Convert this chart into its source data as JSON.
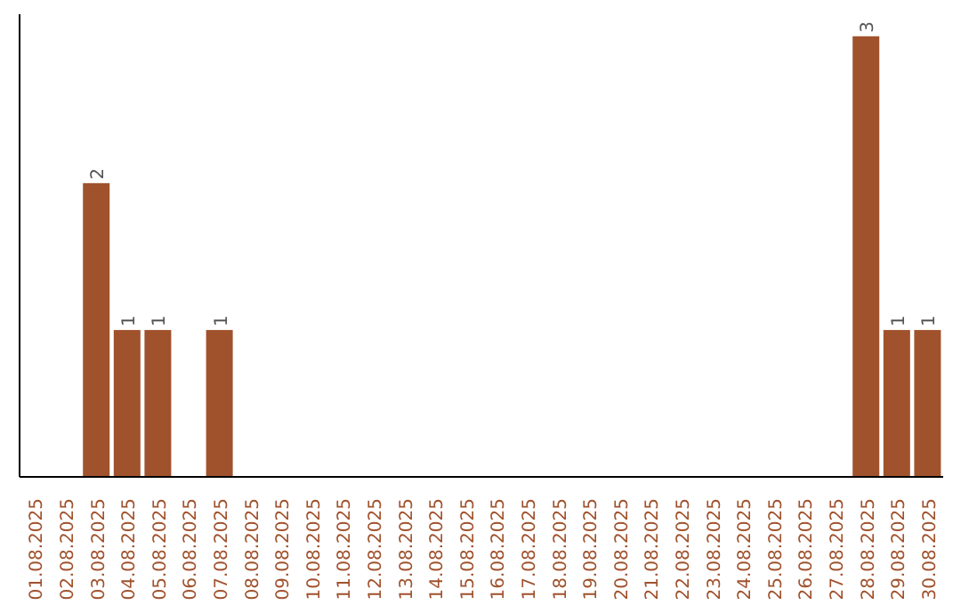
{
  "chart_data": {
    "type": "bar",
    "categories": [
      "01.08.2025",
      "02.08.2025",
      "03.08.2025",
      "04.08.2025",
      "05.08.2025",
      "06.08.2025",
      "07.08.2025",
      "08.08.2025",
      "09.08.2025",
      "10.08.2025",
      "11.08.2025",
      "12.08.2025",
      "13.08.2025",
      "14.08.2025",
      "15.08.2025",
      "16.08.2025",
      "17.08.2025",
      "18.08.2025",
      "19.08.2025",
      "20.08.2025",
      "21.08.2025",
      "22.08.2025",
      "23.08.2025",
      "24.08.2025",
      "25.08.2025",
      "26.08.2025",
      "27.08.2025",
      "28.08.2025",
      "29.08.2025",
      "30.08.2025"
    ],
    "values": [
      0,
      0,
      2,
      1,
      1,
      0,
      1,
      0,
      0,
      0,
      0,
      0,
      0,
      0,
      0,
      0,
      0,
      0,
      0,
      0,
      0,
      0,
      0,
      0,
      0,
      0,
      0,
      3,
      1,
      1
    ],
    "value_labels": [
      null,
      null,
      "2",
      "1",
      "1",
      null,
      "1",
      null,
      null,
      null,
      null,
      null,
      null,
      null,
      null,
      null,
      null,
      null,
      null,
      null,
      null,
      null,
      null,
      null,
      null,
      null,
      null,
      "3",
      "1",
      "1"
    ],
    "color": "#a0522d",
    "grid": false,
    "legend": false
  }
}
